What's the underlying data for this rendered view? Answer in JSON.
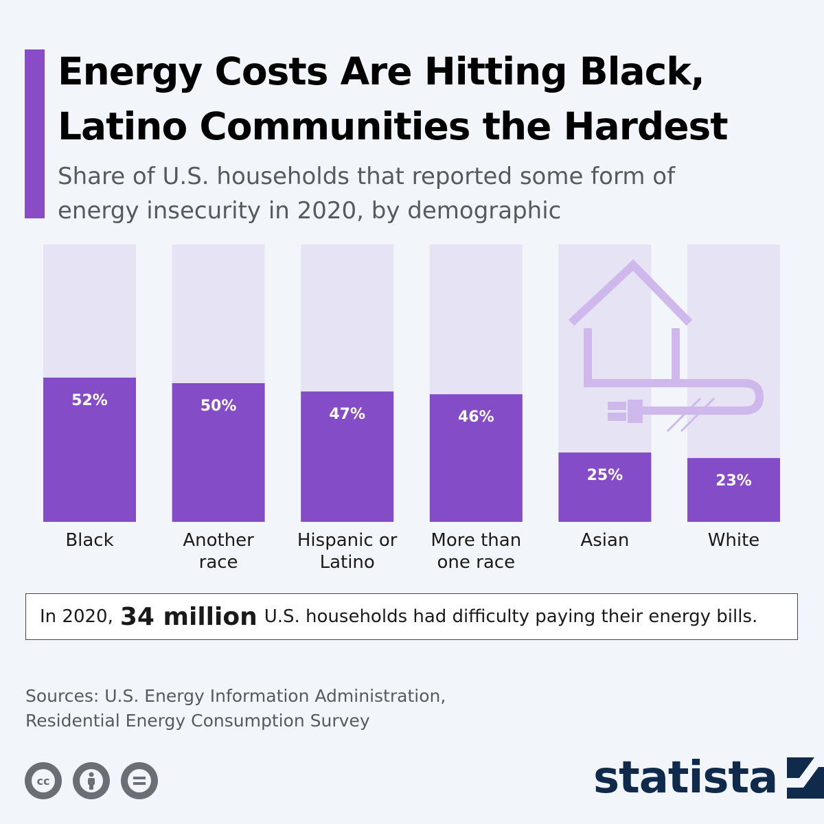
{
  "header": {
    "title": "Energy Costs Are Hitting Black, Latino Communities the Hardest",
    "subtitle": "Share of U.S. households that reported some form of energy insecurity in 2020, by demographic"
  },
  "colors": {
    "accent": "#8a4cc6",
    "bar": "#854cc7",
    "track": "#e6e3f4",
    "icon": "#cfb8ec",
    "logo": "#0f2a4a"
  },
  "chart_data": {
    "type": "bar",
    "categories": [
      [
        "Black"
      ],
      [
        "Another",
        "race"
      ],
      [
        "Hispanic or",
        "Latino"
      ],
      [
        "More than",
        "one race"
      ],
      [
        "Asian"
      ],
      [
        "White"
      ]
    ],
    "values": [
      52,
      50,
      47,
      46,
      25,
      23
    ],
    "value_labels": [
      "52%",
      "50%",
      "47%",
      "46%",
      "25%",
      "23%"
    ],
    "unit": "%",
    "ylim": [
      0,
      100
    ],
    "grid": false,
    "illustration": "house-plug-icon"
  },
  "note": {
    "prefix": "In 2020,",
    "highlight": "34 million",
    "suffix": "U.S. households had difficulty paying their energy bills."
  },
  "sources": {
    "line1": "Sources: U.S. Energy Information Administration,",
    "line2": "Residential Energy Consumption Survey"
  },
  "footer": {
    "license_icons": [
      "cc-icon",
      "attribution-icon",
      "no-derivatives-icon"
    ],
    "logo_text": "statista"
  }
}
